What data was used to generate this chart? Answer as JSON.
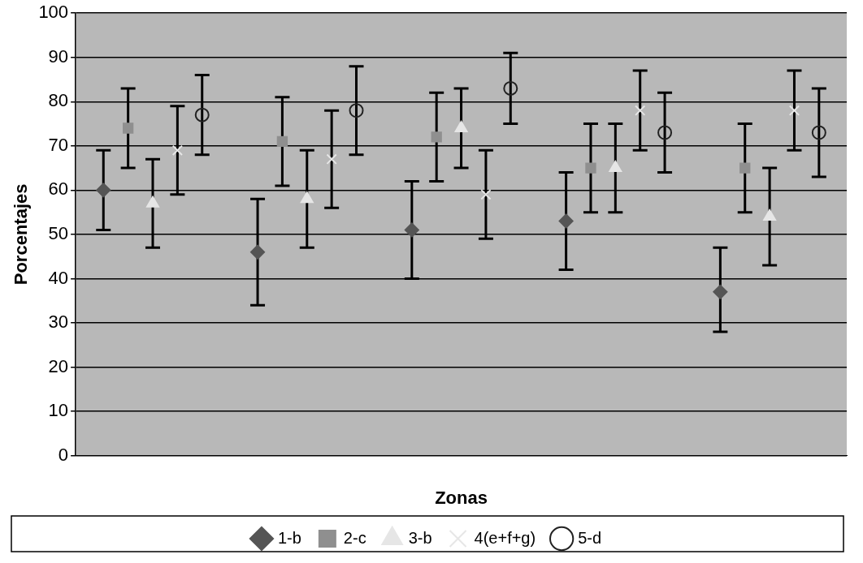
{
  "chart_data": {
    "type": "scatter",
    "xlabel": "Zonas",
    "ylabel": "Porcentajes",
    "categories": [
      null,
      null,
      null,
      null,
      null
    ],
    "ylim": [
      0,
      100
    ],
    "yticks": [
      0,
      10,
      20,
      30,
      40,
      50,
      60,
      70,
      80,
      90,
      100
    ],
    "grid": "y",
    "legend": "bottom",
    "tick_labels": "y",
    "series": [
      {
        "name": "1-b",
        "color": "#555555",
        "marker": "diamond",
        "values": [
          60,
          46,
          51,
          53,
          37
        ],
        "errors": [
          [
            51,
            69
          ],
          [
            34,
            58
          ],
          [
            40,
            62
          ],
          [
            42,
            64
          ],
          [
            28,
            47
          ]
        ]
      },
      {
        "name": "2-c",
        "color": "#8f8f8f",
        "marker": "square",
        "values": [
          74,
          71,
          72,
          65,
          65
        ],
        "errors": [
          [
            65,
            83
          ],
          [
            61,
            81
          ],
          [
            62,
            82
          ],
          [
            55,
            75
          ],
          [
            55,
            75
          ]
        ]
      },
      {
        "name": "3-b",
        "color": "#e6e6e6",
        "marker": "triangle",
        "values": [
          57,
          58,
          74,
          65,
          54
        ],
        "errors": [
          [
            47,
            67
          ],
          [
            47,
            69
          ],
          [
            65,
            83
          ],
          [
            55,
            75
          ],
          [
            43,
            65
          ]
        ]
      },
      {
        "name": "4(e+f+g)",
        "color": "#e6e6e6",
        "marker": "cross",
        "values": [
          69,
          67,
          59,
          78,
          78
        ],
        "errors": [
          [
            59,
            79
          ],
          [
            56,
            78
          ],
          [
            49,
            69
          ],
          [
            69,
            87
          ],
          [
            69,
            87
          ]
        ]
      },
      {
        "name": "5-d",
        "color": "#222222",
        "marker": "circle",
        "values": [
          77,
          78,
          83,
          73,
          73
        ],
        "errors": [
          [
            68,
            86
          ],
          [
            68,
            88
          ],
          [
            75,
            91
          ],
          [
            64,
            82
          ],
          [
            63,
            83
          ]
        ]
      }
    ]
  }
}
